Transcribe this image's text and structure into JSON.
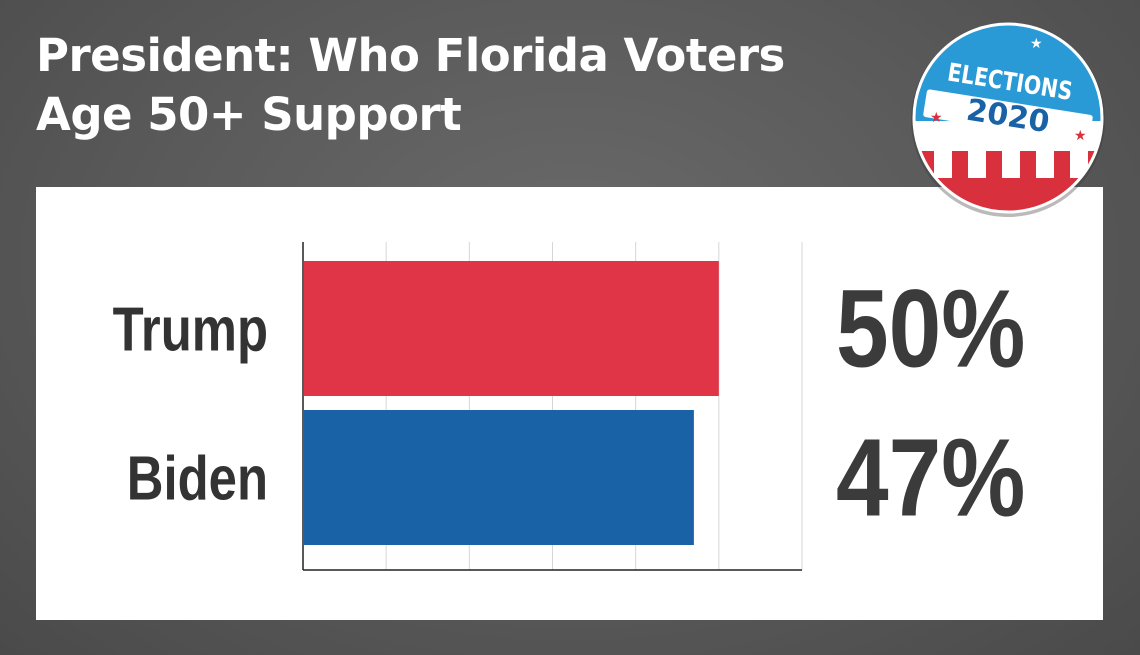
{
  "header": {
    "title_line1": "President: Who Florida Voters",
    "title_line2": "Age 50+ Support"
  },
  "badge": {
    "top_text": "ELECTIONS",
    "year_text": "2020"
  },
  "chart_data": {
    "type": "bar",
    "orientation": "horizontal",
    "categories": [
      "Trump",
      "Biden"
    ],
    "values": [
      50,
      47
    ],
    "value_labels": [
      "50%",
      "47%"
    ],
    "colors": [
      "#e03546",
      "#1a62a6"
    ],
    "xlim": [
      0,
      60
    ],
    "grid": true,
    "xlabel": "",
    "ylabel": ""
  }
}
